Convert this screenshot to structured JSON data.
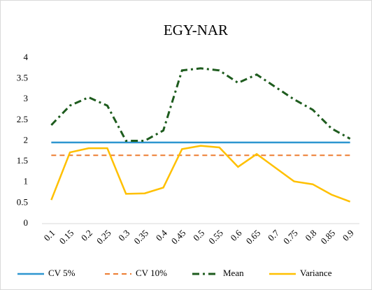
{
  "chart_data": {
    "type": "line",
    "title": "EGY-NAR",
    "categories": [
      "0.1",
      "0.15",
      "0.2",
      "0.25",
      "0.3",
      "0.35",
      "0.4",
      "0.45",
      "0.5",
      "0.55",
      "0.6",
      "0.65",
      "0.7",
      "0.75",
      "0.8",
      "0.85",
      "0.9"
    ],
    "series": [
      {
        "name": "CV 5%",
        "color": "#2e96d0",
        "dash": "solid",
        "values": [
          1.96,
          1.96,
          1.96,
          1.96,
          1.96,
          1.96,
          1.96,
          1.96,
          1.96,
          1.96,
          1.96,
          1.96,
          1.96,
          1.96,
          1.96,
          1.96,
          1.96
        ]
      },
      {
        "name": "CV 10%",
        "color": "#ed7d31",
        "dash": "dash",
        "values": [
          1.65,
          1.65,
          1.65,
          1.65,
          1.65,
          1.65,
          1.65,
          1.65,
          1.65,
          1.65,
          1.65,
          1.65,
          1.65,
          1.65,
          1.65,
          1.65,
          1.65
        ]
      },
      {
        "name": "Mean",
        "color": "#1e5c1e",
        "dash": "dashdot",
        "values": [
          2.38,
          2.85,
          3.05,
          2.85,
          2.0,
          2.0,
          2.25,
          3.7,
          3.75,
          3.7,
          3.4,
          3.6,
          3.3,
          3.0,
          2.75,
          2.3,
          2.05
        ]
      },
      {
        "name": "Variance",
        "color": "#ffc000",
        "dash": "solid",
        "values": [
          0.57,
          1.72,
          1.82,
          1.82,
          0.72,
          0.73,
          0.87,
          1.8,
          1.88,
          1.84,
          1.37,
          1.68,
          1.35,
          1.02,
          0.95,
          0.7,
          0.53
        ]
      }
    ],
    "ylim": [
      0,
      4
    ],
    "yticks": [
      0,
      0.5,
      1,
      1.5,
      2,
      2.5,
      3,
      3.5,
      4
    ],
    "grid": false,
    "legend": "bottom"
  }
}
